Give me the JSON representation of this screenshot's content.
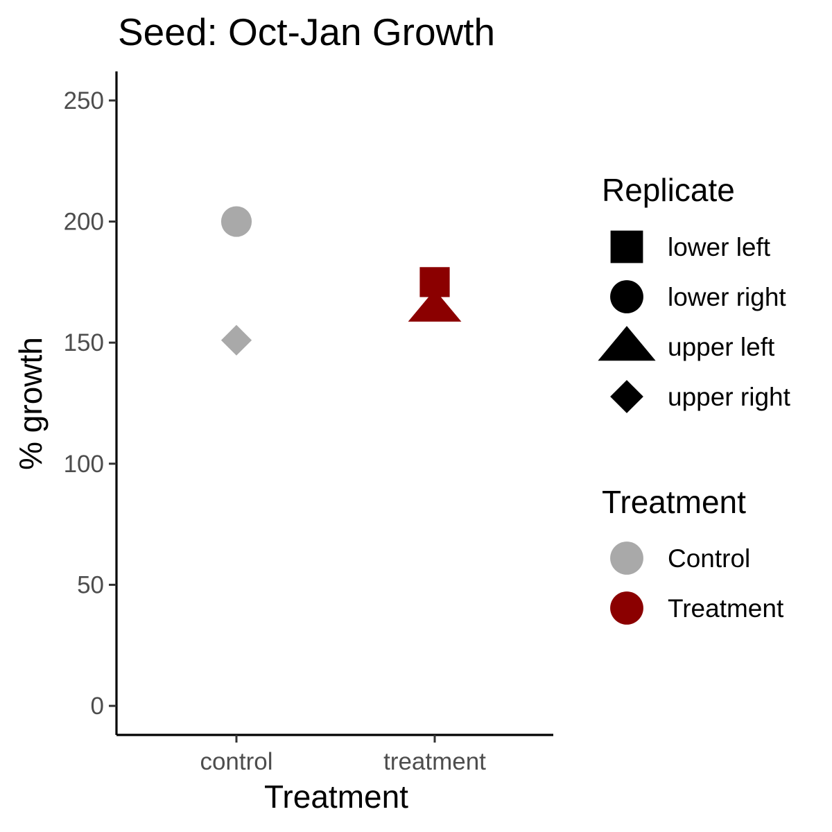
{
  "chart_data": {
    "type": "scatter",
    "title": "Seed: Oct-Jan Growth",
    "xlabel": "Treatment",
    "ylabel": "% growth",
    "categories": [
      "control",
      "treatment"
    ],
    "ylim": [
      -12,
      262
    ],
    "yticks": [
      0,
      50,
      100,
      150,
      200,
      250
    ],
    "grid": false,
    "points": [
      {
        "x": "control",
        "y": 200,
        "replicate": "lower right",
        "treatment": "Control"
      },
      {
        "x": "control",
        "y": 151,
        "replicate": "upper right",
        "treatment": "Control"
      },
      {
        "x": "treatment",
        "y": 175,
        "replicate": "lower left",
        "treatment": "Treatment"
      },
      {
        "x": "treatment",
        "y": 164,
        "replicate": "upper left",
        "treatment": "Treatment"
      }
    ],
    "legends": [
      {
        "title": "Replicate",
        "items": [
          {
            "label": "lower left",
            "shape": "square",
            "color": "#000000"
          },
          {
            "label": "lower right",
            "shape": "circle",
            "color": "#000000"
          },
          {
            "label": "upper left",
            "shape": "triangle",
            "color": "#000000"
          },
          {
            "label": "upper right",
            "shape": "diamond",
            "color": "#000000"
          }
        ]
      },
      {
        "title": "Treatment",
        "items": [
          {
            "label": "Control",
            "shape": "circle",
            "color": "#a9a9a9"
          },
          {
            "label": "Treatment",
            "shape": "circle",
            "color": "#8b0000"
          }
        ]
      }
    ],
    "shape_map": {
      "lower left": "square",
      "lower right": "circle",
      "upper left": "triangle",
      "upper right": "diamond"
    },
    "color_map": {
      "Control": "#a9a9a9",
      "Treatment": "#8b0000"
    },
    "legend_position": "right"
  }
}
